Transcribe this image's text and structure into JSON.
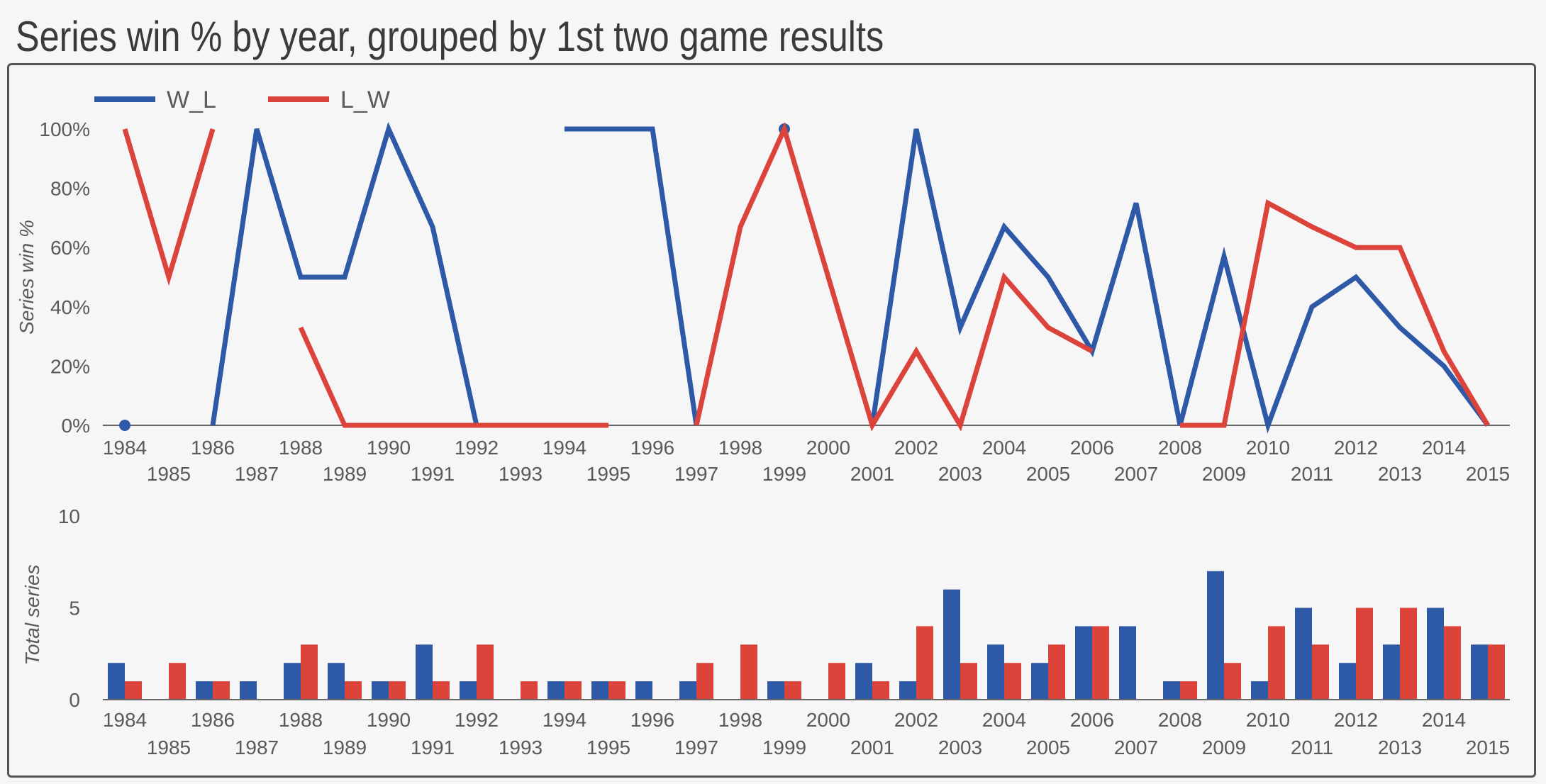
{
  "title": "Series win % by year, grouped by 1st two game results",
  "colors": {
    "W_L": "#2e59a7",
    "L_W": "#dc433b",
    "axis": "#666666",
    "text": "#5a5a5a"
  },
  "chart_data": [
    {
      "type": "line",
      "x": [
        1984,
        1985,
        1986,
        1987,
        1988,
        1989,
        1990,
        1991,
        1992,
        1993,
        1994,
        1995,
        1996,
        1997,
        1998,
        1999,
        2000,
        2001,
        2002,
        2003,
        2004,
        2005,
        2006,
        2007,
        2008,
        2009,
        2010,
        2011,
        2012,
        2013,
        2014,
        2015
      ],
      "x_ticks": [
        "1984",
        "1985",
        "1986",
        "1987",
        "1988",
        "1989",
        "1990",
        "1991",
        "1992",
        "1993",
        "1994",
        "1995",
        "1996",
        "1997",
        "1998",
        "1999",
        "2000",
        "2001",
        "2002",
        "2003",
        "2004",
        "2005",
        "2006",
        "2007",
        "2008",
        "2009",
        "2010",
        "2011",
        "2012",
        "2013",
        "2014",
        "2015"
      ],
      "ylabel": "Series win %",
      "ylim": [
        0,
        100
      ],
      "y_ticks": [
        "0%",
        "20%",
        "40%",
        "60%",
        "80%",
        "100%"
      ],
      "legend_position": "top-left",
      "series": [
        {
          "name": "W_L",
          "values": [
            0,
            null,
            0,
            100,
            50,
            50,
            100,
            67,
            0,
            null,
            100,
            100,
            100,
            0,
            null,
            100,
            null,
            0,
            100,
            33,
            67,
            50,
            25,
            75,
            0,
            57,
            0,
            40,
            50,
            33,
            20,
            0
          ]
        },
        {
          "name": "L_W",
          "values": [
            100,
            50,
            100,
            null,
            33,
            0,
            0,
            0,
            0,
            0,
            0,
            0,
            null,
            0,
            67,
            100,
            50,
            0,
            25,
            0,
            50,
            33,
            25,
            null,
            0,
            0,
            75,
            67,
            60,
            60,
            25,
            0
          ]
        }
      ]
    },
    {
      "type": "bar",
      "categories": [
        "1984",
        "1985",
        "1986",
        "1987",
        "1988",
        "1989",
        "1990",
        "1991",
        "1992",
        "1993",
        "1994",
        "1995",
        "1996",
        "1997",
        "1998",
        "1999",
        "2000",
        "2001",
        "2002",
        "2003",
        "2004",
        "2005",
        "2006",
        "2007",
        "2008",
        "2009",
        "2010",
        "2011",
        "2012",
        "2013",
        "2014",
        "2015"
      ],
      "ylabel": "Total series",
      "ylim": [
        0,
        10
      ],
      "y_ticks": [
        "0",
        "5",
        "10"
      ],
      "series": [
        {
          "name": "W_L",
          "values": [
            2,
            0,
            1,
            1,
            2,
            2,
            1,
            3,
            1,
            0,
            1,
            1,
            1,
            1,
            0,
            1,
            0,
            2,
            1,
            6,
            3,
            2,
            4,
            4,
            1,
            7,
            1,
            5,
            2,
            3,
            5,
            3
          ]
        },
        {
          "name": "L_W",
          "values": [
            1,
            2,
            1,
            0,
            3,
            1,
            1,
            1,
            3,
            1,
            1,
            1,
            0,
            2,
            3,
            1,
            2,
            1,
            4,
            2,
            2,
            3,
            4,
            0,
            1,
            2,
            4,
            3,
            5,
            5,
            4,
            3
          ]
        }
      ]
    }
  ]
}
